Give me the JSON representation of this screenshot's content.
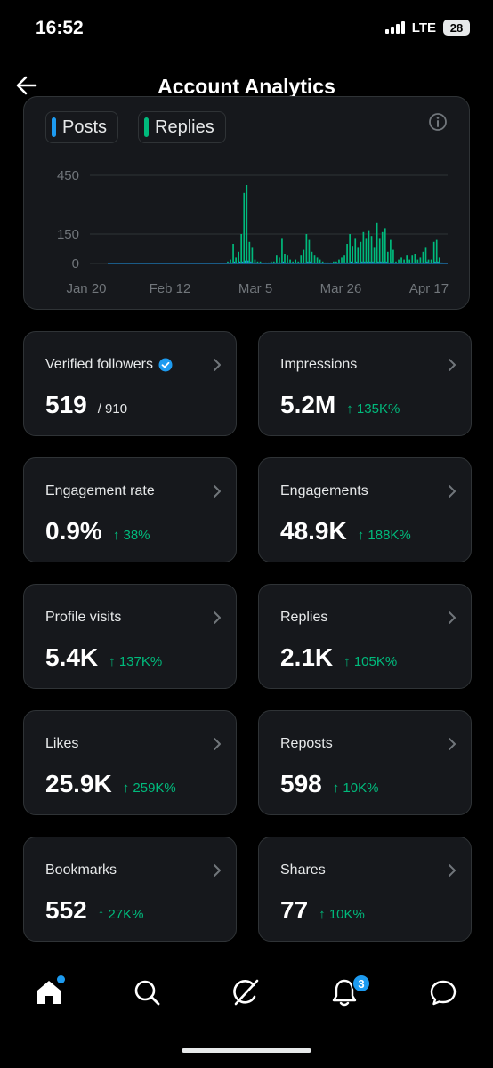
{
  "status_bar": {
    "time": "16:52",
    "network": "LTE",
    "battery": "28"
  },
  "header": {
    "title": "Account Analytics"
  },
  "chart_legend": {
    "posts_label": "Posts",
    "replies_label": "Replies",
    "posts_color": "#1d9bf0",
    "replies_color": "#00ba7c"
  },
  "chart_data": {
    "type": "bar",
    "ylim": [
      0,
      450
    ],
    "y_ticks": [
      "450",
      "150",
      "0"
    ],
    "x_ticks": [
      "Jan 20",
      "Feb 12",
      "Mar 5",
      "Mar 26",
      "Apr 17"
    ],
    "series": [
      {
        "name": "Replies",
        "values": [
          0,
          0,
          0,
          0,
          0,
          0,
          0,
          0,
          0,
          0,
          0,
          0,
          0,
          0,
          0,
          0,
          0,
          0,
          0,
          0,
          0,
          0,
          0,
          0,
          0,
          0,
          0,
          0,
          0,
          0,
          0,
          0,
          0,
          0,
          0,
          0,
          0,
          0,
          0,
          0,
          0,
          0,
          0,
          0,
          10,
          20,
          100,
          30,
          60,
          150,
          360,
          400,
          110,
          80,
          20,
          10,
          10,
          5,
          5,
          5,
          10,
          10,
          40,
          30,
          130,
          50,
          40,
          20,
          10,
          20,
          10,
          40,
          70,
          150,
          120,
          60,
          40,
          30,
          20,
          10,
          5,
          5,
          5,
          10,
          10,
          20,
          30,
          40,
          100,
          150,
          90,
          130,
          80,
          110,
          160,
          130,
          170,
          140,
          80,
          210,
          130,
          160,
          180,
          60,
          120,
          70,
          10,
          20,
          30,
          20,
          40,
          20,
          40,
          50,
          20,
          30,
          60,
          80,
          20,
          20,
          110,
          120,
          30,
          5
        ]
      },
      {
        "name": "Posts",
        "values": [
          0,
          0,
          0,
          0,
          0,
          0,
          0,
          0,
          0,
          0,
          0,
          0,
          0,
          0,
          0,
          0,
          0,
          0,
          0,
          0,
          0,
          0,
          0,
          0,
          0,
          0,
          0,
          0,
          0,
          0,
          0,
          0,
          0,
          0,
          0,
          0,
          0,
          0,
          0,
          0,
          0,
          0,
          0,
          0,
          5,
          5,
          10,
          5,
          10,
          10,
          15,
          15,
          10,
          5,
          5,
          0,
          0,
          0,
          0,
          0,
          5,
          5,
          5,
          5,
          10,
          5,
          5,
          5,
          0,
          5,
          5,
          5,
          5,
          10,
          10,
          5,
          5,
          5,
          0,
          0,
          0,
          0,
          0,
          0,
          5,
          5,
          5,
          5,
          5,
          10,
          5,
          10,
          5,
          10,
          10,
          10,
          10,
          10,
          5,
          10,
          10,
          10,
          10,
          5,
          10,
          5,
          0,
          5,
          5,
          5,
          5,
          5,
          5,
          5,
          5,
          5,
          5,
          10,
          5,
          5,
          10,
          10,
          5,
          0
        ]
      }
    ]
  },
  "cards": [
    {
      "label": "Verified followers",
      "value": "519",
      "total": "/ 910",
      "change": "",
      "verified": true
    },
    {
      "label": "Impressions",
      "value": "5.2M",
      "total": "",
      "change": "↑ 135K%"
    },
    {
      "label": "Engagement rate",
      "value": "0.9%",
      "total": "",
      "change": "↑ 38%"
    },
    {
      "label": "Engagements",
      "value": "48.9K",
      "total": "",
      "change": "↑ 188K%"
    },
    {
      "label": "Profile visits",
      "value": "5.4K",
      "total": "",
      "change": "↑ 137K%"
    },
    {
      "label": "Replies",
      "value": "2.1K",
      "total": "",
      "change": "↑ 105K%"
    },
    {
      "label": "Likes",
      "value": "25.9K",
      "total": "",
      "change": "↑ 259K%"
    },
    {
      "label": "Reposts",
      "value": "598",
      "total": "",
      "change": "↑ 10K%"
    },
    {
      "label": "Bookmarks",
      "value": "552",
      "total": "",
      "change": "↑ 27K%"
    },
    {
      "label": "Shares",
      "value": "77",
      "total": "",
      "change": "↑ 10K%"
    }
  ],
  "bottom_nav": {
    "items": [
      "home-icon",
      "search-icon",
      "grok-icon",
      "notifications-icon",
      "messages-icon"
    ],
    "notification_count": "3",
    "accent": "#1d9bf0"
  }
}
